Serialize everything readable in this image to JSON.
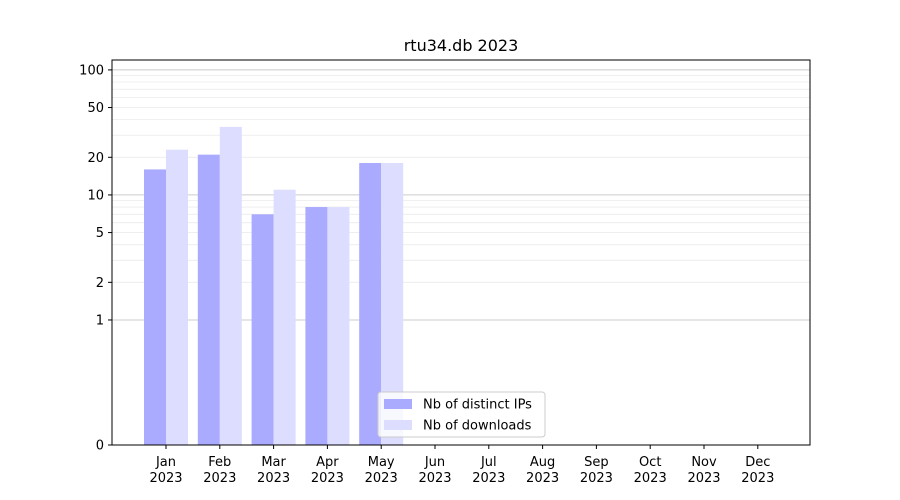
{
  "chart_data": {
    "type": "bar",
    "title": "rtu34.db 2023",
    "xlabel": "",
    "ylabel": "",
    "y_scale": "symlog",
    "ylim": [
      0,
      120
    ],
    "yticks": [
      0,
      1,
      2,
      5,
      10,
      20,
      50,
      100
    ],
    "categories": [
      {
        "month": "Jan",
        "year": "2023"
      },
      {
        "month": "Feb",
        "year": "2023"
      },
      {
        "month": "Mar",
        "year": "2023"
      },
      {
        "month": "Apr",
        "year": "2023"
      },
      {
        "month": "May",
        "year": "2023"
      },
      {
        "month": "Jun",
        "year": "2023"
      },
      {
        "month": "Jul",
        "year": "2023"
      },
      {
        "month": "Aug",
        "year": "2023"
      },
      {
        "month": "Sep",
        "year": "2023"
      },
      {
        "month": "Oct",
        "year": "2023"
      },
      {
        "month": "Nov",
        "year": "2023"
      },
      {
        "month": "Dec",
        "year": "2023"
      }
    ],
    "series": [
      {
        "name": "Nb of distinct IPs",
        "color": "#aaaaff",
        "values": [
          16,
          21,
          7,
          8,
          18,
          0,
          0,
          0,
          0,
          0,
          0,
          0
        ]
      },
      {
        "name": "Nb of downloads",
        "color": "#ddddff",
        "values": [
          23,
          35,
          11,
          8,
          18,
          0,
          0,
          0,
          0,
          0,
          0,
          0
        ]
      }
    ],
    "grid": true,
    "legend_position": "lower-center"
  }
}
